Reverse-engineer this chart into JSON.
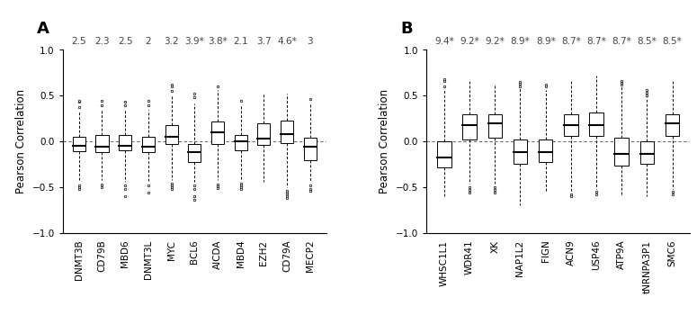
{
  "panel_A": {
    "labels": [
      "DNMT3B",
      "CD79B",
      "MBD6",
      "DNMT3L",
      "MYC",
      "BCL6",
      "AICDA",
      "MBD4",
      "EZH2",
      "CD79A",
      "MECP2"
    ],
    "scores": [
      "2.5",
      "2.3",
      "2.5",
      "2",
      "3.2",
      "3.9*",
      "3.8*",
      "2.1",
      "3.7",
      "4.6*",
      "3"
    ],
    "boxes": [
      {
        "q1": -0.11,
        "med": -0.05,
        "q3": 0.05,
        "whislo": -0.42,
        "whishi": 0.33,
        "fliers_lo": [
          -0.48,
          -0.5,
          -0.52
        ],
        "fliers_hi": [
          0.38,
          0.43,
          0.44
        ]
      },
      {
        "q1": -0.12,
        "med": -0.06,
        "q3": 0.07,
        "whislo": -0.42,
        "whishi": 0.35,
        "fliers_lo": [
          -0.47,
          -0.5
        ],
        "fliers_hi": [
          0.4,
          0.44
        ]
      },
      {
        "q1": -0.1,
        "med": -0.05,
        "q3": 0.07,
        "whislo": -0.44,
        "whishi": 0.35,
        "fliers_lo": [
          -0.48,
          -0.52,
          -0.6
        ],
        "fliers_hi": [
          0.4,
          0.43
        ]
      },
      {
        "q1": -0.12,
        "med": -0.06,
        "q3": 0.05,
        "whislo": -0.43,
        "whishi": 0.35,
        "fliers_lo": [
          -0.48,
          -0.56
        ],
        "fliers_hi": [
          0.4,
          0.44
        ]
      },
      {
        "q1": -0.03,
        "med": 0.05,
        "q3": 0.18,
        "whislo": -0.42,
        "whishi": 0.5,
        "fliers_lo": [
          -0.46,
          -0.48,
          -0.5,
          -0.52
        ],
        "fliers_hi": [
          0.55,
          0.6,
          0.62
        ]
      },
      {
        "q1": -0.22,
        "med": -0.12,
        "q3": -0.03,
        "whislo": -0.44,
        "whishi": 0.42,
        "fliers_lo": [
          -0.48,
          -0.52,
          -0.6,
          -0.64
        ],
        "fliers_hi": [
          0.48,
          0.52
        ]
      },
      {
        "q1": -0.03,
        "med": 0.1,
        "q3": 0.22,
        "whislo": -0.42,
        "whishi": 0.56,
        "fliers_lo": [
          -0.47,
          -0.49,
          -0.51
        ],
        "fliers_hi": [
          0.6
        ]
      },
      {
        "q1": -0.1,
        "med": 0.0,
        "q3": 0.07,
        "whislo": -0.42,
        "whishi": 0.4,
        "fliers_lo": [
          -0.46,
          -0.48,
          -0.5,
          -0.52
        ],
        "fliers_hi": [
          0.44
        ]
      },
      {
        "q1": -0.04,
        "med": 0.03,
        "q3": 0.2,
        "whislo": -0.44,
        "whishi": 0.52,
        "fliers_lo": [],
        "fliers_hi": []
      },
      {
        "q1": -0.02,
        "med": 0.08,
        "q3": 0.23,
        "whislo": -0.5,
        "whishi": 0.52,
        "fliers_lo": [
          -0.54,
          -0.56,
          -0.58,
          -0.6,
          -0.62
        ],
        "fliers_hi": []
      },
      {
        "q1": -0.2,
        "med": -0.06,
        "q3": 0.04,
        "whislo": -0.44,
        "whishi": 0.42,
        "fliers_lo": [
          -0.48,
          -0.52,
          -0.54
        ],
        "fliers_hi": [
          0.46
        ]
      }
    ]
  },
  "panel_B": {
    "labels": [
      "WHSC1L1",
      "WDR41",
      "XK",
      "NAP1L2",
      "FIGN",
      "ACN9",
      "USP46",
      "ATP9A",
      "tNRNPA3P1",
      "SMC6"
    ],
    "scores": [
      "9.4*",
      "9.2*",
      "9.2*",
      "8.9*",
      "8.9*",
      "8.7*",
      "8.7*",
      "8.7*",
      "8.5*",
      "8.5*"
    ],
    "boxes": [
      {
        "q1": -0.28,
        "med": -0.17,
        "q3": 0.0,
        "whislo": -0.6,
        "whishi": 0.56,
        "fliers_lo": [],
        "fliers_hi": [
          0.6,
          0.66,
          0.68
        ]
      },
      {
        "q1": 0.02,
        "med": 0.18,
        "q3": 0.3,
        "whislo": -0.46,
        "whishi": 0.68,
        "fliers_lo": [
          -0.5,
          -0.53,
          -0.56
        ],
        "fliers_hi": []
      },
      {
        "q1": 0.04,
        "med": 0.2,
        "q3": 0.3,
        "whislo": -0.46,
        "whishi": 0.63,
        "fliers_lo": [
          -0.5,
          -0.53,
          -0.56
        ],
        "fliers_hi": []
      },
      {
        "q1": -0.24,
        "med": -0.12,
        "q3": 0.02,
        "whislo": -0.7,
        "whishi": 0.58,
        "fliers_lo": [],
        "fliers_hi": [
          0.6,
          0.63,
          0.65
        ]
      },
      {
        "q1": -0.22,
        "med": -0.12,
        "q3": 0.02,
        "whislo": -0.56,
        "whishi": 0.56,
        "fliers_lo": [],
        "fliers_hi": [
          0.6,
          0.62
        ]
      },
      {
        "q1": 0.06,
        "med": 0.18,
        "q3": 0.3,
        "whislo": -0.55,
        "whishi": 0.68,
        "fliers_lo": [
          -0.58,
          -0.6
        ],
        "fliers_hi": []
      },
      {
        "q1": 0.06,
        "med": 0.18,
        "q3": 0.32,
        "whislo": -0.52,
        "whishi": 0.72,
        "fliers_lo": [
          -0.55,
          -0.58
        ],
        "fliers_hi": []
      },
      {
        "q1": -0.26,
        "med": -0.14,
        "q3": 0.04,
        "whislo": -0.6,
        "whishi": 0.6,
        "fliers_lo": [],
        "fliers_hi": [
          0.62,
          0.64,
          0.66
        ]
      },
      {
        "q1": -0.24,
        "med": -0.14,
        "q3": 0.0,
        "whislo": -0.6,
        "whishi": 0.48,
        "fliers_lo": [],
        "fliers_hi": [
          0.5,
          0.53,
          0.56
        ]
      },
      {
        "q1": 0.06,
        "med": 0.2,
        "q3": 0.3,
        "whislo": -0.52,
        "whishi": 0.68,
        "fliers_lo": [
          -0.55,
          -0.58
        ],
        "fliers_hi": []
      }
    ]
  },
  "ylim": [
    -1.0,
    1.0
  ],
  "yticks": [
    -1.0,
    -0.5,
    0.0,
    0.5,
    1.0
  ],
  "ylabel": "Pearson Correlation",
  "score_fontsize": 7.5,
  "label_fontsize": 7.5,
  "ylabel_fontsize": 8.5
}
